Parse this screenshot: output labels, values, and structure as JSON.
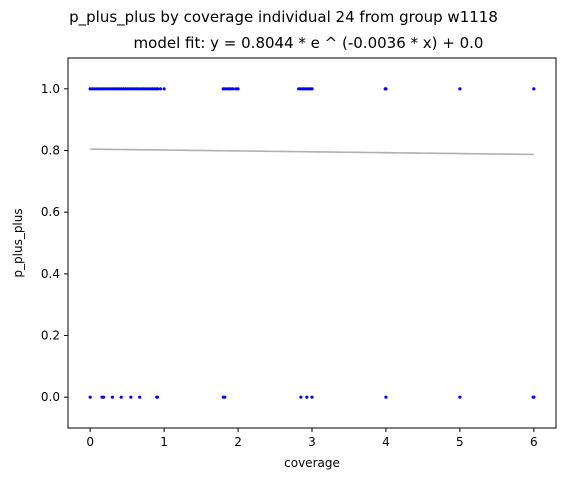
{
  "chart_data": {
    "type": "scatter",
    "title": "p_plus_plus by coverage individual 24 from group w1118",
    "subtitle": "model fit: y = 0.8044 * e ^ (-0.0036 * x) + 0.0",
    "xlabel": "coverage",
    "ylabel": "p_plus_plus",
    "xlim": [
      -0.3,
      6.3
    ],
    "ylim": [
      -0.1,
      1.1
    ],
    "xticks": [
      0,
      1,
      2,
      3,
      4,
      5,
      6
    ],
    "yticks": [
      0.0,
      0.2,
      0.4,
      0.6,
      0.8,
      1.0
    ],
    "grid": false,
    "legend": "none",
    "colors": {
      "points": "#0000ff",
      "fit": "#b0b0b0"
    },
    "series": [
      {
        "kind": "points",
        "x": [
          0.0,
          0.03,
          0.06,
          0.09,
          0.12,
          0.15,
          0.18,
          0.21,
          0.24,
          0.27,
          0.3,
          0.33,
          0.36,
          0.39,
          0.42,
          0.45,
          0.48,
          0.51,
          0.54,
          0.57,
          0.6,
          0.63,
          0.66,
          0.69,
          0.72,
          0.75,
          0.78,
          0.81,
          0.84,
          0.87,
          0.9,
          0.91,
          0.95,
          1.0,
          1.8,
          1.82,
          1.85,
          1.88,
          1.9,
          1.93,
          1.97,
          2.0,
          2.82,
          2.85,
          2.88,
          2.9,
          2.93,
          2.96,
          2.98,
          3.0,
          3.99,
          4.0,
          5.0,
          6.0,
          0.0,
          0.16,
          0.18,
          0.3,
          0.42,
          0.55,
          0.67,
          0.9,
          0.91,
          1.8,
          1.82,
          2.85,
          2.93,
          3.0,
          4.0,
          5.0,
          5.99,
          6.0
        ],
        "y": [
          1,
          1,
          1,
          1,
          1,
          1,
          1,
          1,
          1,
          1,
          1,
          1,
          1,
          1,
          1,
          1,
          1,
          1,
          1,
          1,
          1,
          1,
          1,
          1,
          1,
          1,
          1,
          1,
          1,
          1,
          1,
          1,
          1,
          1,
          1,
          1,
          1,
          1,
          1,
          1,
          1,
          1,
          1,
          1,
          1,
          1,
          1,
          1,
          1,
          1,
          1,
          1,
          1,
          1,
          0,
          0,
          0,
          0,
          0,
          0,
          0,
          0,
          0,
          0,
          0,
          0,
          0,
          0,
          0,
          0,
          0,
          0
        ]
      },
      {
        "kind": "fit",
        "a": 0.8044,
        "b": -0.0036,
        "c": 0.0,
        "x_range": [
          0,
          6
        ]
      }
    ]
  }
}
